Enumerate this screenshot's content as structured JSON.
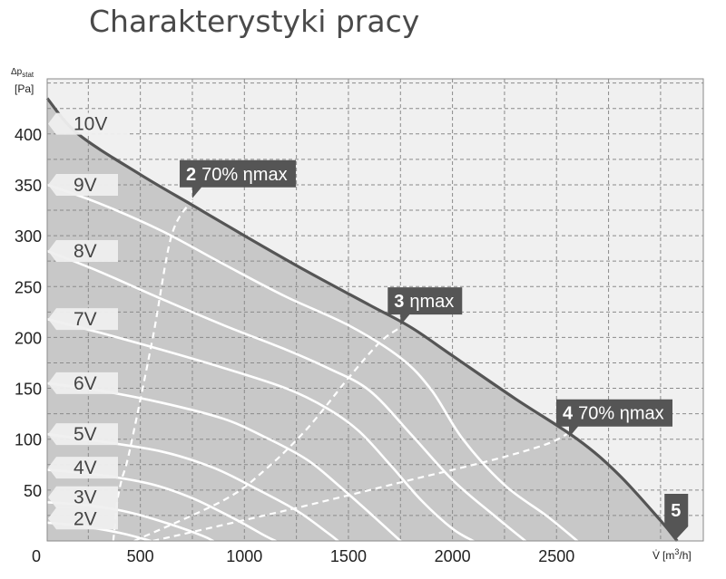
{
  "page": {
    "title": "Charakterystyki pracy"
  },
  "chart_data": {
    "type": "line",
    "title": "",
    "ylabel": "Δp_stat [Pa]",
    "ylabel_main": "Δp",
    "ylabel_sub": "stat",
    "ylabel_unit": "[Pa]",
    "xlabel": "V̇ [m³/h]",
    "xlabel_symbol": "V̇",
    "xlabel_unit_pre": "[m",
    "xlabel_unit_sup": "3",
    "xlabel_unit_post": "/h]",
    "xlim": [
      0,
      3200
    ],
    "ylim": [
      0,
      460
    ],
    "x_ticks": [
      "0",
      "500",
      "1000",
      "1500",
      "2000",
      "2500"
    ],
    "y_ticks": [
      "50",
      "100",
      "150",
      "200",
      "250",
      "300",
      "350",
      "400"
    ],
    "grid": true,
    "series": [
      {
        "name": "10V",
        "points": [
          [
            0,
            435
          ],
          [
            200,
            400
          ],
          [
            500,
            360
          ],
          [
            750,
            330
          ],
          [
            1000,
            300
          ],
          [
            1300,
            265
          ],
          [
            1600,
            232
          ],
          [
            1800,
            210
          ],
          [
            2000,
            182
          ],
          [
            2300,
            140
          ],
          [
            2600,
            100
          ],
          [
            2800,
            65
          ],
          [
            3000,
            20
          ],
          [
            3080,
            0
          ]
        ]
      },
      {
        "name": "9V",
        "points": [
          [
            0,
            350
          ],
          [
            300,
            332
          ],
          [
            600,
            305
          ],
          [
            900,
            272
          ],
          [
            1200,
            240
          ],
          [
            1500,
            212
          ],
          [
            1750,
            180
          ],
          [
            1900,
            148
          ],
          [
            2050,
            100
          ],
          [
            2250,
            55
          ],
          [
            2450,
            25
          ],
          [
            2600,
            0
          ]
        ]
      },
      {
        "name": "8V",
        "points": [
          [
            0,
            285
          ],
          [
            300,
            265
          ],
          [
            600,
            238
          ],
          [
            900,
            212
          ],
          [
            1200,
            188
          ],
          [
            1400,
            170
          ],
          [
            1600,
            148
          ],
          [
            1800,
            105
          ],
          [
            2000,
            60
          ],
          [
            2200,
            25
          ],
          [
            2350,
            0
          ]
        ]
      },
      {
        "name": "7V",
        "points": [
          [
            0,
            218
          ],
          [
            300,
            205
          ],
          [
            600,
            188
          ],
          [
            900,
            170
          ],
          [
            1200,
            150
          ],
          [
            1400,
            130
          ],
          [
            1550,
            108
          ],
          [
            1700,
            75
          ],
          [
            1850,
            40
          ],
          [
            2000,
            12
          ],
          [
            2100,
            0
          ]
        ]
      },
      {
        "name": "6V",
        "points": [
          [
            0,
            155
          ],
          [
            300,
            148
          ],
          [
            600,
            136
          ],
          [
            900,
            120
          ],
          [
            1100,
            102
          ],
          [
            1300,
            80
          ],
          [
            1450,
            55
          ],
          [
            1600,
            28
          ],
          [
            1750,
            0
          ]
        ]
      },
      {
        "name": "5V",
        "points": [
          [
            0,
            105
          ],
          [
            300,
            98
          ],
          [
            600,
            88
          ],
          [
            850,
            72
          ],
          [
            1050,
            52
          ],
          [
            1250,
            30
          ],
          [
            1400,
            8
          ],
          [
            1450,
            0
          ]
        ]
      },
      {
        "name": "4V",
        "points": [
          [
            0,
            70
          ],
          [
            300,
            65
          ],
          [
            550,
            56
          ],
          [
            750,
            42
          ],
          [
            950,
            22
          ],
          [
            1100,
            5
          ],
          [
            1150,
            0
          ]
        ]
      },
      {
        "name": "3V",
        "points": [
          [
            0,
            38
          ],
          [
            250,
            35
          ],
          [
            450,
            28
          ],
          [
            650,
            16
          ],
          [
            800,
            5
          ],
          [
            850,
            0
          ]
        ]
      },
      {
        "name": "2V",
        "points": [
          [
            0,
            18
          ],
          [
            200,
            15
          ],
          [
            400,
            8
          ],
          [
            550,
            0
          ]
        ]
      }
    ],
    "reference_curves": [
      {
        "name": "70% ηmax (low)",
        "points": [
          [
            370,
            0
          ],
          [
            380,
            20
          ],
          [
            390,
            40
          ],
          [
            410,
            60
          ],
          [
            450,
            90
          ],
          [
            560,
            200
          ],
          [
            650,
            300
          ],
          [
            750,
            335
          ]
        ]
      },
      {
        "name": "ηmax",
        "points": [
          [
            470,
            0
          ],
          [
            900,
            40
          ],
          [
            1100,
            70
          ],
          [
            1300,
            110
          ],
          [
            1500,
            160
          ],
          [
            1650,
            195
          ],
          [
            1750,
            210
          ]
        ]
      },
      {
        "name": "70% ηmax (high)",
        "points": [
          [
            560,
            0
          ],
          [
            1200,
            30
          ],
          [
            1800,
            60
          ],
          [
            2200,
            80
          ],
          [
            2450,
            95
          ],
          [
            2550,
            105
          ]
        ]
      }
    ],
    "annotations": [
      {
        "id": "2",
        "number": "2",
        "text": "70% ηmax",
        "x": 750,
        "y": 335
      },
      {
        "id": "3",
        "number": "3",
        "text": "ηmax",
        "x": 1750,
        "y": 210
      },
      {
        "id": "4",
        "number": "4",
        "text": "70% ηmax",
        "x": 2560,
        "y": 100
      },
      {
        "id": "5",
        "number": "5",
        "text": "",
        "x": 3080,
        "y": 0
      }
    ],
    "colors": {
      "plot_background": "#f0f0f0",
      "operating_area": "#c8c8c8",
      "curve": "#ffffff",
      "max_curve": "#555555",
      "label_flag": "#efefef",
      "callout": "#555555"
    }
  }
}
